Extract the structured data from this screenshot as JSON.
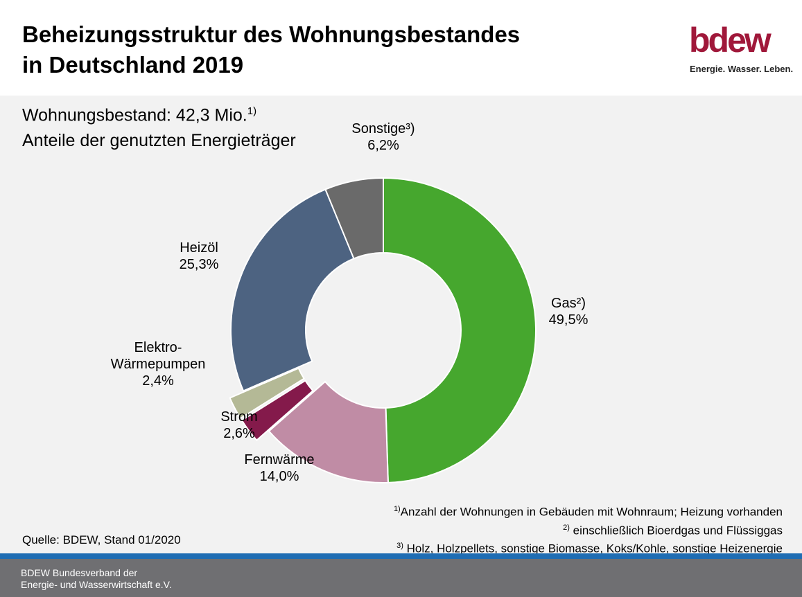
{
  "header": {
    "title_line1": "Beheizungsstruktur des Wohnungsbestandes",
    "title_line2": "in Deutschland 2019",
    "logo_text": "bdew",
    "logo_tagline": "Energie. Wasser. Leben."
  },
  "subtitle": {
    "line1_text": "Wohnungsbestand: 42,3 Mio.",
    "line1_footnote": "1)",
    "line2": "Anteile der genutzten Energieträger"
  },
  "chart_data": {
    "type": "pie",
    "series": [
      {
        "category": "Gas²)",
        "value": 49.5,
        "label": "49,5%",
        "color": "#46a72e"
      },
      {
        "category": "Fernwärme",
        "value": 14.0,
        "label": "14,0%",
        "color": "#c08ca5"
      },
      {
        "category": "Strom",
        "value": 2.6,
        "label": "2,6%",
        "color": "#841a4b",
        "exploded": true
      },
      {
        "category": "Elektro-Wärmepumpen",
        "category_lines": [
          "Elektro-",
          "Wärmepumpen"
        ],
        "value": 2.4,
        "label": "2,4%",
        "color": "#b4b996",
        "exploded": true
      },
      {
        "category": "Heizöl",
        "value": 25.3,
        "label": "25,3%",
        "color": "#4d6381"
      },
      {
        "category": "Sonstige³)",
        "value": 6.2,
        "label": "6,2%",
        "color": "#6a6a6a"
      }
    ]
  },
  "footnotes": [
    {
      "marker": "1)",
      "text": "Anzahl der Wohnungen in Gebäuden mit Wohnraum; Heizung vorhanden"
    },
    {
      "marker": "2)",
      "text": " einschließlich Bioerdgas und Flüssiggas"
    },
    {
      "marker": "3)",
      "text": " Holz, Holzpellets, sonstige Biomasse, Koks/Kohle, sonstige Heizenergie"
    }
  ],
  "source": "Quelle: BDEW, Stand 01/2020",
  "footer": {
    "org_line1": "BDEW Bundesverband der",
    "org_line2": "Energie- und Wasserwirtschaft e.V."
  }
}
